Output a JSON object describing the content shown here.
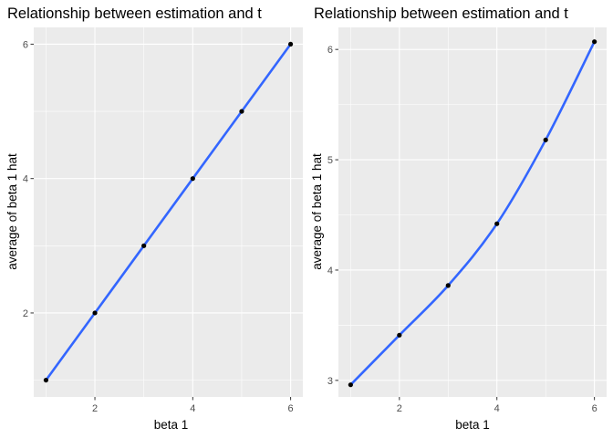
{
  "chart_data": [
    {
      "type": "line",
      "title": "Relationship between estimation and t",
      "xlabel": "beta 1",
      "ylabel": "average of beta 1 hat",
      "xlim": [
        0.75,
        6.25
      ],
      "ylim": [
        0.75,
        6.25
      ],
      "x_ticks": [
        2,
        4,
        6
      ],
      "y_ticks": [
        2,
        4,
        6
      ],
      "grid": true,
      "legend": "none",
      "series": [
        {
          "x": [
            1,
            2,
            3,
            4,
            5,
            6
          ],
          "values": [
            1.0,
            2.0,
            3.0,
            4.0,
            5.0,
            6.0
          ]
        }
      ],
      "smooth_line": true,
      "line_color": "#3366ff",
      "point_color": "#000000",
      "panel_color": "#ebebeb"
    },
    {
      "type": "line",
      "title": "Relationship between estimation and t",
      "xlabel": "beta 1",
      "ylabel": "average of beta 1 hat",
      "xlim": [
        0.75,
        6.25
      ],
      "ylim": [
        2.85,
        6.2
      ],
      "x_ticks": [
        2,
        4,
        6
      ],
      "y_ticks": [
        3,
        4,
        5,
        6
      ],
      "grid": true,
      "legend": "none",
      "series": [
        {
          "x": [
            1,
            2,
            3,
            4,
            5,
            6
          ],
          "values": [
            2.96,
            3.41,
            3.86,
            4.42,
            5.18,
            6.07
          ]
        }
      ],
      "smooth_line": true,
      "line_color": "#3366ff",
      "point_color": "#000000",
      "panel_color": "#ebebeb"
    }
  ]
}
